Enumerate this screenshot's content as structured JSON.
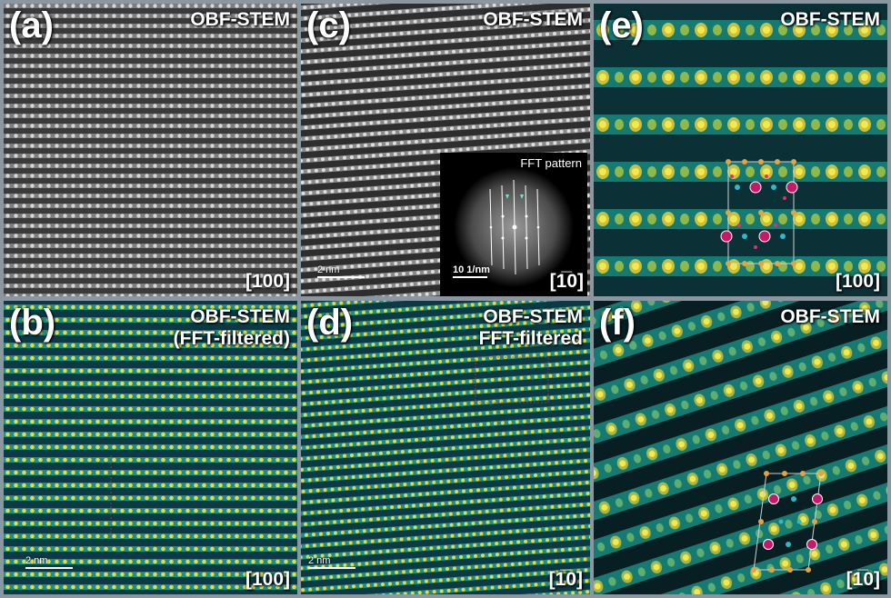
{
  "panels": {
    "a": {
      "letter": "(a)",
      "title": "OBF-STEM",
      "zone_axis": "[100]"
    },
    "b": {
      "letter": "(b)",
      "title_line1": "OBF-STEM",
      "title_line2": "(FFT-filtered)",
      "zone_axis": "[100]",
      "scalebar": "2 nm"
    },
    "c": {
      "letter": "(c)",
      "title": "OBF-STEM",
      "zone_axis": "[1̅0]",
      "scalebar": "2 nm",
      "inset": {
        "title": "FFT pattern",
        "scalebar": "10 1/nm"
      }
    },
    "d": {
      "letter": "(d)",
      "title_line1": "OBF-STEM",
      "title_line2": "FFT-filtered",
      "zone_axis": "[1̅0]",
      "scalebar": "2 nm"
    },
    "e": {
      "letter": "(e)",
      "title": "OBF-STEM",
      "zone_axis": "[100]"
    },
    "f": {
      "letter": "(f)",
      "title": "OBF-STEM",
      "zone_axis": "[1̅0]"
    }
  },
  "colors": {
    "frame": "#8b97a0",
    "grey_dark": "#2a2a2a",
    "grey_light": "#d8d8d8",
    "teal_bg": "#0d4d4d",
    "teal": "#1f9a88",
    "yellow": "#f0e040",
    "magenta": "#c8186a",
    "orange": "#e6a23c"
  }
}
